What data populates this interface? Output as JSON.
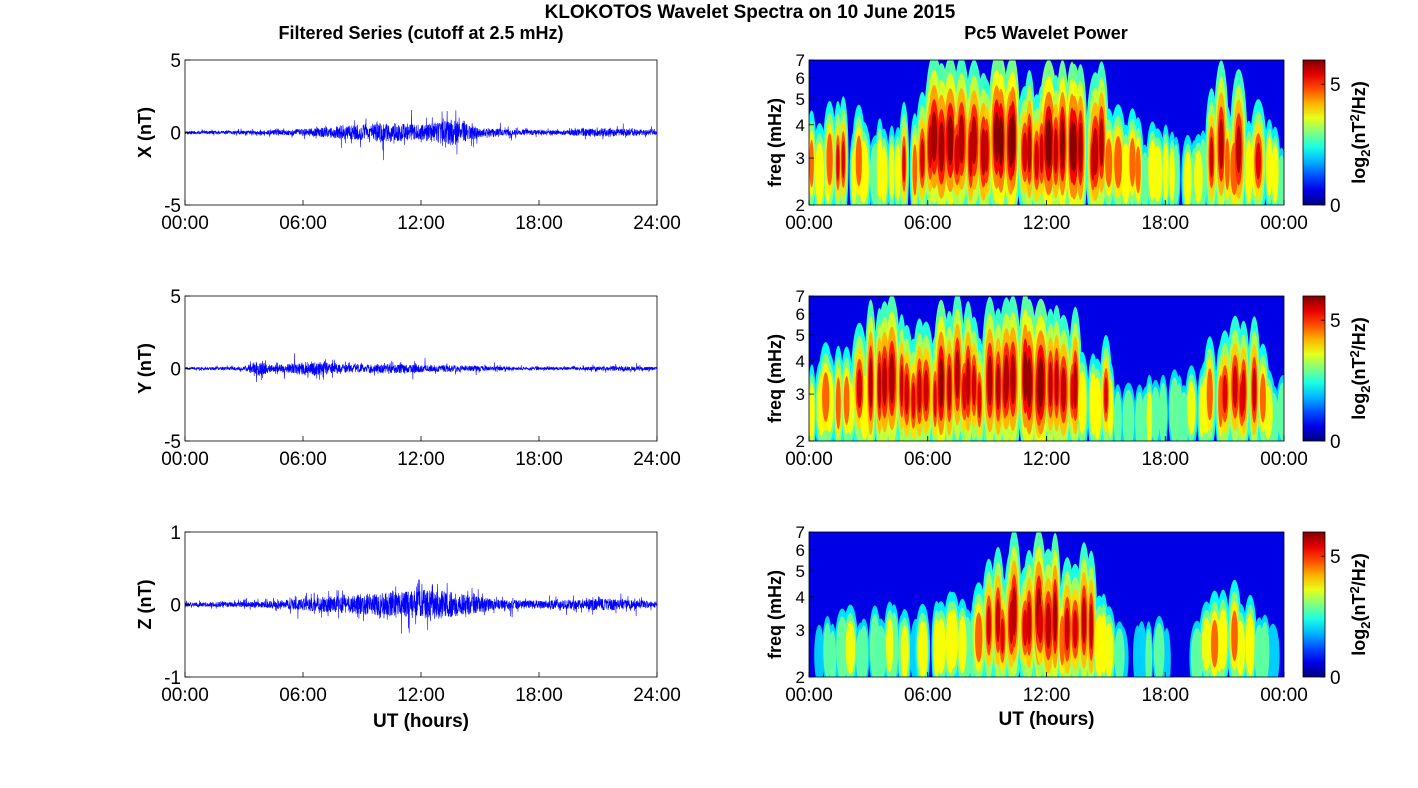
{
  "figure": {
    "title": "KLOKOTOS Wavelet Spectra on 10 June 2015",
    "left_column_title": "Filtered Series (cutoff at 2.5 mHz)",
    "right_column_title": "Pc5 Wavelet Power"
  },
  "chart_data": [
    {
      "type": "line",
      "component": "X",
      "ylabel": "X (nT)",
      "ylim": [
        -5,
        5
      ],
      "yticks": [
        "5",
        "0",
        "-5"
      ],
      "xlim_hours": [
        0,
        24
      ],
      "xticks": [
        "00:00",
        "06:00",
        "12:00",
        "18:00",
        "24:00"
      ],
      "xlabel": "",
      "line_color": "#0000ff",
      "amplitude_envelope": [
        {
          "hour": 0,
          "amp": 0.3
        },
        {
          "hour": 3,
          "amp": 0.35
        },
        {
          "hour": 5,
          "amp": 0.5
        },
        {
          "hour": 7,
          "amp": 1.0
        },
        {
          "hour": 9,
          "amp": 1.6
        },
        {
          "hour": 10,
          "amp": 2.0
        },
        {
          "hour": 12,
          "amp": 1.5
        },
        {
          "hour": 13.6,
          "amp": 2.6
        },
        {
          "hour": 15,
          "amp": 0.9
        },
        {
          "hour": 17,
          "amp": 0.6
        },
        {
          "hour": 19,
          "amp": 0.4
        },
        {
          "hour": 21,
          "amp": 0.9
        },
        {
          "hour": 22.5,
          "amp": 0.7
        },
        {
          "hour": 24,
          "amp": 0.4
        }
      ]
    },
    {
      "type": "line",
      "component": "Y",
      "ylabel": "Y (nT)",
      "ylim": [
        -5,
        5
      ],
      "yticks": [
        "5",
        "0",
        "-5"
      ],
      "xlim_hours": [
        0,
        24
      ],
      "xticks": [
        "00:00",
        "06:00",
        "12:00",
        "18:00",
        "24:00"
      ],
      "xlabel": "",
      "line_color": "#0000ff",
      "amplitude_envelope": [
        {
          "hour": 0,
          "amp": 0.25
        },
        {
          "hour": 3,
          "amp": 0.35
        },
        {
          "hour": 3.7,
          "amp": 1.6
        },
        {
          "hour": 4.5,
          "amp": 0.6
        },
        {
          "hour": 6.5,
          "amp": 1.5
        },
        {
          "hour": 8,
          "amp": 0.8
        },
        {
          "hour": 11,
          "amp": 0.9
        },
        {
          "hour": 14,
          "amp": 0.6
        },
        {
          "hour": 17,
          "amp": 0.3
        },
        {
          "hour": 20,
          "amp": 0.3
        },
        {
          "hour": 22,
          "amp": 0.5
        },
        {
          "hour": 24,
          "amp": 0.3
        }
      ]
    },
    {
      "type": "line",
      "component": "Z",
      "ylabel": "Z (nT)",
      "ylim": [
        -1,
        1
      ],
      "yticks": [
        "1",
        "0",
        "-1"
      ],
      "xlim_hours": [
        0,
        24
      ],
      "xticks": [
        "00:00",
        "06:00",
        "12:00",
        "18:00",
        "24:00"
      ],
      "xlabel": "UT (hours)",
      "line_color": "#0000ff",
      "amplitude_envelope": [
        {
          "hour": 0,
          "amp": 0.08
        },
        {
          "hour": 4,
          "amp": 0.12
        },
        {
          "hour": 7,
          "amp": 0.3
        },
        {
          "hour": 9.5,
          "amp": 0.45
        },
        {
          "hour": 11,
          "amp": 0.5
        },
        {
          "hour": 12.5,
          "amp": 0.6
        },
        {
          "hour": 14,
          "amp": 0.45
        },
        {
          "hour": 16,
          "amp": 0.2
        },
        {
          "hour": 18,
          "amp": 0.15
        },
        {
          "hour": 20,
          "amp": 0.2
        },
        {
          "hour": 21.5,
          "amp": 0.25
        },
        {
          "hour": 24,
          "amp": 0.12
        }
      ]
    },
    {
      "type": "heatmap",
      "component": "X",
      "ylabel": "freq (mHz)",
      "ylim_mhz": [
        2,
        7
      ],
      "y_scale": "log",
      "yticks": [
        "7",
        "6",
        "5",
        "4",
        "3",
        "2"
      ],
      "xlim_hours": [
        0,
        24
      ],
      "xticks": [
        "00:00",
        "06:00",
        "12:00",
        "18:00",
        "00:00"
      ],
      "xlabel": "",
      "colormap": "jet",
      "colorbar_label": "log2(nT^2/Hz)",
      "colorbar_ticks": [
        "5",
        "0"
      ],
      "colorbar_range": [
        0,
        6
      ],
      "activity_profile": [
        {
          "hour": 0,
          "level": 0.5
        },
        {
          "hour": 2,
          "level": 0.55
        },
        {
          "hour": 4,
          "level": 0.35
        },
        {
          "hour": 5.5,
          "level": 0.8
        },
        {
          "hour": 8,
          "level": 1.0
        },
        {
          "hour": 10,
          "level": 1.1
        },
        {
          "hour": 13,
          "level": 1.1
        },
        {
          "hour": 15,
          "level": 0.8
        },
        {
          "hour": 17,
          "level": 0.4
        },
        {
          "hour": 19.5,
          "level": 0.35
        },
        {
          "hour": 21,
          "level": 0.95
        },
        {
          "hour": 22.5,
          "level": 0.7
        },
        {
          "hour": 24,
          "level": 0.2
        }
      ]
    },
    {
      "type": "heatmap",
      "component": "Y",
      "ylabel": "freq (mHz)",
      "ylim_mhz": [
        2,
        7
      ],
      "y_scale": "log",
      "yticks": [
        "7",
        "6",
        "5",
        "4",
        "3",
        "2"
      ],
      "xlim_hours": [
        0,
        24
      ],
      "xticks": [
        "00:00",
        "06:00",
        "12:00",
        "18:00",
        "00:00"
      ],
      "xlabel": "",
      "colormap": "jet",
      "colorbar_label": "log2(nT^2/Hz)",
      "colorbar_ticks": [
        "5",
        "0"
      ],
      "colorbar_range": [
        0,
        6
      ],
      "activity_profile": [
        {
          "hour": 0,
          "level": 0.45
        },
        {
          "hour": 2,
          "level": 0.5
        },
        {
          "hour": 3.5,
          "level": 1.0
        },
        {
          "hour": 5,
          "level": 0.7
        },
        {
          "hour": 7,
          "level": 1.05
        },
        {
          "hour": 9,
          "level": 0.85
        },
        {
          "hour": 11.5,
          "level": 1.0
        },
        {
          "hour": 14,
          "level": 0.7
        },
        {
          "hour": 16,
          "level": 0.3
        },
        {
          "hour": 19,
          "level": 0.3
        },
        {
          "hour": 21,
          "level": 0.65
        },
        {
          "hour": 22.5,
          "level": 0.7
        },
        {
          "hour": 24,
          "level": 0.2
        }
      ]
    },
    {
      "type": "heatmap",
      "component": "Z",
      "ylabel": "freq (mHz)",
      "ylim_mhz": [
        2,
        7
      ],
      "y_scale": "log",
      "yticks": [
        "7",
        "6",
        "5",
        "4",
        "3",
        "2"
      ],
      "xlim_hours": [
        0,
        24
      ],
      "xticks": [
        "00:00",
        "06:00",
        "12:00",
        "18:00",
        "00:00"
      ],
      "xlabel": "UT (hours)",
      "colormap": "jet",
      "colorbar_label": "log2(nT^2/Hz)",
      "colorbar_ticks": [
        "5",
        "0"
      ],
      "colorbar_range": [
        0,
        6
      ],
      "activity_profile": [
        {
          "hour": 0,
          "level": 0.05
        },
        {
          "hour": 1.5,
          "level": 0.3
        },
        {
          "hour": 3.5,
          "level": 0.3
        },
        {
          "hour": 5.5,
          "level": 0.3
        },
        {
          "hour": 6.5,
          "level": 0.5
        },
        {
          "hour": 8,
          "level": 0.3
        },
        {
          "hour": 9.5,
          "level": 0.75
        },
        {
          "hour": 11.5,
          "level": 0.9
        },
        {
          "hour": 13,
          "level": 0.85
        },
        {
          "hour": 14.5,
          "level": 0.7
        },
        {
          "hour": 16,
          "level": 0.1
        },
        {
          "hour": 17,
          "level": 0.3
        },
        {
          "hour": 19,
          "level": 0.05
        },
        {
          "hour": 20.5,
          "level": 0.45
        },
        {
          "hour": 22,
          "level": 0.5
        },
        {
          "hour": 24,
          "level": 0.05
        }
      ]
    }
  ]
}
